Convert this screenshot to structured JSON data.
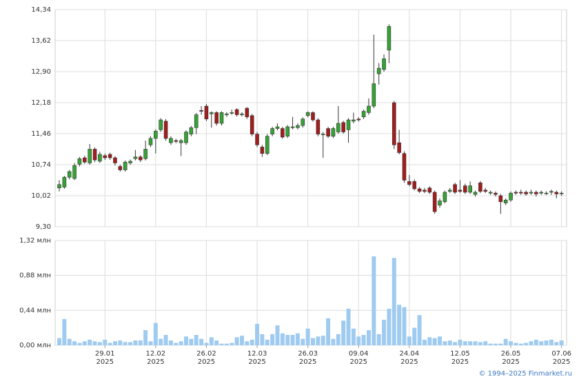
{
  "chart_data": [
    {
      "type": "candlestick",
      "up_color": "#36a336",
      "down_color": "#a31d1d",
      "grid": true,
      "ylim": [
        9.3,
        14.34
      ],
      "yticks": [
        {
          "value": 9.3,
          "label": "9,30"
        },
        {
          "value": 10.02,
          "label": "10,02"
        },
        {
          "value": 10.74,
          "label": "10,74"
        },
        {
          "value": 11.46,
          "label": "11,46"
        },
        {
          "value": 12.18,
          "label": "12,18"
        },
        {
          "value": 12.9,
          "label": "12,90"
        },
        {
          "value": 13.62,
          "label": "13,62"
        },
        {
          "value": 14.34,
          "label": "14,34"
        }
      ],
      "open": [
        10.2,
        10.22,
        10.45,
        10.42,
        10.75,
        10.9,
        10.78,
        11.1,
        10.82,
        10.95,
        10.98,
        10.9,
        10.7,
        10.62,
        10.78,
        10.88,
        10.92,
        10.88,
        11.2,
        11.35,
        11.55,
        11.75,
        11.25,
        11.3,
        11.25,
        11.25,
        11.45,
        11.6,
        12.0,
        12.1,
        11.92,
        11.95,
        11.7,
        11.9,
        11.95,
        12.02,
        11.9,
        12.05,
        11.88,
        11.45,
        11.15,
        11.0,
        11.45,
        11.58,
        11.58,
        11.4,
        11.6,
        11.6,
        11.65,
        11.88,
        11.95,
        11.78,
        11.45,
        11.58,
        11.4,
        11.5,
        11.72,
        11.55,
        11.75,
        11.8,
        11.85,
        11.95,
        12.1,
        12.85,
        12.95,
        13.4,
        12.18,
        11.25,
        11.0,
        10.35,
        10.35,
        10.18,
        10.15,
        10.2,
        10.1,
        9.8,
        9.88,
        10.12,
        10.28,
        10.15,
        10.25,
        10.1,
        10.05,
        10.32,
        10.15,
        10.08,
        10.08,
        10.02,
        9.85,
        9.92,
        10.1,
        10.1,
        10.1,
        10.08,
        10.1,
        10.08,
        10.08,
        10.1,
        10.1,
        10.08
      ],
      "high": [
        10.38,
        10.48,
        10.62,
        10.78,
        10.92,
        10.95,
        11.22,
        11.14,
        11.04,
        11.0,
        11.02,
        10.94,
        10.74,
        10.84,
        10.86,
        11.08,
        10.96,
        11.3,
        11.4,
        11.56,
        11.82,
        11.8,
        11.4,
        11.34,
        11.34,
        11.54,
        11.64,
        11.94,
        12.1,
        12.15,
        11.98,
        11.98,
        11.98,
        11.96,
        12.02,
        12.05,
        11.96,
        12.08,
        11.92,
        11.5,
        11.2,
        11.45,
        11.62,
        11.7,
        11.62,
        11.66,
        11.85,
        11.7,
        11.84,
        11.98,
        11.98,
        11.82,
        11.5,
        11.62,
        11.62,
        12.1,
        11.76,
        11.82,
        11.95,
        11.84,
        12.02,
        12.28,
        13.76,
        13.1,
        13.3,
        14.0,
        12.22,
        11.55,
        11.05,
        10.5,
        10.4,
        10.22,
        10.2,
        10.24,
        10.14,
        9.96,
        10.14,
        10.2,
        10.32,
        10.38,
        10.3,
        10.35,
        10.14,
        10.36,
        10.2,
        10.14,
        10.12,
        10.06,
        9.96,
        10.12,
        10.14,
        10.16,
        10.14,
        10.16,
        10.14,
        10.14,
        10.12,
        10.16,
        10.14,
        10.12
      ],
      "low": [
        10.12,
        10.18,
        10.4,
        10.38,
        10.7,
        10.76,
        10.74,
        10.8,
        10.78,
        10.85,
        10.85,
        10.72,
        10.58,
        10.58,
        10.74,
        10.84,
        10.8,
        10.84,
        11.15,
        11.0,
        11.5,
        11.3,
        11.2,
        11.24,
        10.94,
        11.2,
        11.4,
        11.45,
        11.9,
        11.75,
        11.6,
        11.65,
        11.65,
        11.85,
        11.9,
        11.86,
        11.86,
        11.8,
        11.4,
        11.15,
        10.92,
        10.96,
        11.4,
        11.54,
        11.34,
        11.36,
        11.56,
        11.56,
        11.6,
        11.84,
        11.74,
        11.4,
        10.9,
        11.36,
        11.36,
        11.46,
        11.46,
        11.25,
        11.7,
        11.74,
        11.8,
        11.9,
        12.05,
        12.6,
        12.9,
        13.1,
        11.1,
        10.98,
        10.32,
        10.24,
        10.14,
        10.08,
        10.08,
        10.06,
        9.6,
        9.74,
        9.84,
        10.08,
        10.06,
        10.08,
        10.06,
        10.06,
        10.0,
        10.08,
        10.08,
        10.04,
        10.0,
        9.6,
        9.8,
        9.88,
        10.04,
        10.04,
        10.02,
        10.04,
        10.0,
        10.04,
        10.04,
        10.04,
        9.96,
        10.02
      ],
      "close": [
        10.28,
        10.45,
        10.58,
        10.72,
        10.88,
        10.8,
        11.1,
        10.85,
        10.98,
        10.9,
        10.9,
        10.78,
        10.62,
        10.8,
        10.82,
        10.92,
        10.85,
        11.1,
        11.35,
        11.52,
        11.78,
        11.35,
        11.35,
        11.28,
        11.3,
        11.5,
        11.6,
        11.9,
        11.98,
        11.8,
        11.95,
        11.7,
        11.95,
        11.92,
        11.95,
        11.9,
        11.92,
        11.85,
        11.45,
        11.2,
        11.0,
        11.4,
        11.58,
        11.62,
        11.38,
        11.62,
        11.62,
        11.65,
        11.8,
        11.95,
        11.78,
        11.45,
        11.45,
        11.4,
        11.58,
        11.7,
        11.5,
        11.78,
        11.78,
        11.78,
        11.98,
        12.1,
        12.62,
        12.98,
        13.2,
        13.95,
        11.2,
        11.02,
        10.38,
        10.28,
        10.18,
        10.12,
        10.12,
        10.1,
        9.65,
        9.9,
        10.1,
        10.15,
        10.1,
        10.12,
        10.1,
        10.25,
        10.1,
        10.12,
        10.12,
        10.1,
        10.05,
        9.88,
        9.92,
        10.08,
        10.08,
        10.08,
        10.06,
        10.1,
        10.06,
        10.1,
        10.08,
        10.12,
        10.06,
        10.08
      ]
    },
    {
      "type": "bar",
      "color": "#9fcbf0",
      "grid": true,
      "ylim": [
        0,
        1.32
      ],
      "yticks": [
        {
          "value": 0,
          "label": "0,00 млн"
        },
        {
          "value": 0.44,
          "label": "0,44 млн"
        },
        {
          "value": 0.88,
          "label": "0,88 млн"
        },
        {
          "value": 1.32,
          "label": "1,32 млн"
        }
      ],
      "values": [
        0.09,
        0.33,
        0.08,
        0.05,
        0.03,
        0.05,
        0.07,
        0.05,
        0.04,
        0.07,
        0.03,
        0.05,
        0.06,
        0.04,
        0.04,
        0.06,
        0.06,
        0.19,
        0.05,
        0.28,
        0.08,
        0.13,
        0.06,
        0.03,
        0.05,
        0.11,
        0.08,
        0.13,
        0.08,
        0.03,
        0.1,
        0.06,
        0.02,
        0.02,
        0.03,
        0.1,
        0.12,
        0.05,
        0.07,
        0.27,
        0.14,
        0.07,
        0.14,
        0.25,
        0.15,
        0.13,
        0.13,
        0.15,
        0.08,
        0.21,
        0.09,
        0.11,
        0.12,
        0.34,
        0.08,
        0.14,
        0.31,
        0.46,
        0.21,
        0.11,
        0.13,
        0.19,
        1.12,
        0.14,
        0.32,
        0.46,
        1.1,
        0.51,
        0.48,
        0.11,
        0.22,
        0.38,
        0.07,
        0.1,
        0.09,
        0.11,
        0.05,
        0.06,
        0.04,
        0.07,
        0.05,
        0.05,
        0.05,
        0.04,
        0.05,
        0.02,
        0.02,
        0.02,
        0.08,
        0.05,
        0.03,
        0.02,
        0.03,
        0.05,
        0.07,
        0.05,
        0.06,
        0.07,
        0.04,
        0.06
      ],
      "categories": [
        null,
        null,
        null,
        null,
        null,
        null,
        null,
        null,
        null,
        [
          "29.01",
          "2025"
        ],
        null,
        null,
        null,
        null,
        null,
        null,
        null,
        null,
        null,
        [
          "12.02",
          "2025"
        ],
        null,
        null,
        null,
        null,
        null,
        null,
        null,
        null,
        null,
        [
          "26.02",
          "2025"
        ],
        null,
        null,
        null,
        null,
        null,
        null,
        null,
        null,
        null,
        [
          "12.03",
          "2025"
        ],
        null,
        null,
        null,
        null,
        null,
        null,
        null,
        null,
        null,
        [
          "26.03",
          "2025"
        ],
        null,
        null,
        null,
        null,
        null,
        null,
        null,
        null,
        null,
        [
          "09.04",
          "2025"
        ],
        null,
        null,
        null,
        null,
        null,
        null,
        null,
        null,
        null,
        [
          "24.04",
          "2025"
        ],
        null,
        null,
        null,
        null,
        null,
        null,
        null,
        null,
        null,
        [
          "12.05",
          "2025"
        ],
        null,
        null,
        null,
        null,
        null,
        null,
        null,
        null,
        null,
        [
          "26.05",
          "2025"
        ],
        null,
        null,
        null,
        null,
        null,
        null,
        null,
        null,
        null,
        [
          "07.06",
          "2025"
        ]
      ]
    }
  ],
  "footer": {
    "copyright": "© 1994–2025 Finmarket.ru"
  }
}
